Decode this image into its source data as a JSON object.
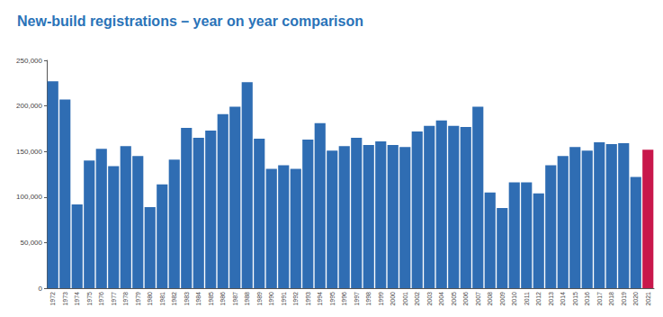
{
  "chart_data": {
    "type": "bar",
    "title": "New-build registrations – year on year comparison",
    "categories": [
      "1972",
      "1973",
      "1974",
      "1975",
      "1976",
      "1977",
      "1978",
      "1979",
      "1980",
      "1981",
      "1982",
      "1983",
      "1984",
      "1985",
      "1986",
      "1987",
      "1988",
      "1989",
      "1990",
      "1991",
      "1992",
      "1993",
      "1994",
      "1995",
      "1996",
      "1997",
      "1998",
      "1999",
      "2000",
      "2001",
      "2002",
      "2003",
      "2004",
      "2005",
      "2006",
      "2007",
      "2008",
      "2009",
      "2010",
      "2011",
      "2012",
      "2013",
      "2014",
      "2015",
      "2016",
      "2017",
      "2018",
      "2019",
      "2020",
      "2021"
    ],
    "values": [
      227000,
      207000,
      92000,
      140000,
      153000,
      134000,
      156000,
      145000,
      89000,
      114000,
      141000,
      176000,
      165000,
      173000,
      191000,
      199000,
      226000,
      164000,
      131000,
      135000,
      131000,
      163000,
      181000,
      151000,
      156000,
      165000,
      157000,
      161000,
      157000,
      155000,
      172000,
      178000,
      184000,
      178000,
      177000,
      199000,
      105000,
      88000,
      116000,
      116000,
      104000,
      135000,
      145000,
      155000,
      151000,
      160000,
      158000,
      159000,
      122000,
      152000
    ],
    "colors": [
      "#2f6db3",
      "#2f6db3",
      "#2f6db3",
      "#2f6db3",
      "#2f6db3",
      "#2f6db3",
      "#2f6db3",
      "#2f6db3",
      "#2f6db3",
      "#2f6db3",
      "#2f6db3",
      "#2f6db3",
      "#2f6db3",
      "#2f6db3",
      "#2f6db3",
      "#2f6db3",
      "#2f6db3",
      "#2f6db3",
      "#2f6db3",
      "#2f6db3",
      "#2f6db3",
      "#2f6db3",
      "#2f6db3",
      "#2f6db3",
      "#2f6db3",
      "#2f6db3",
      "#2f6db3",
      "#2f6db3",
      "#2f6db3",
      "#2f6db3",
      "#2f6db3",
      "#2f6db3",
      "#2f6db3",
      "#2f6db3",
      "#2f6db3",
      "#2f6db3",
      "#2f6db3",
      "#2f6db3",
      "#2f6db3",
      "#2f6db3",
      "#2f6db3",
      "#2f6db3",
      "#2f6db3",
      "#2f6db3",
      "#2f6db3",
      "#2f6db3",
      "#2f6db3",
      "#2f6db3",
      "#2f6db3",
      "#c8174b"
    ],
    "ylim": [
      0,
      250000
    ],
    "yticks": [
      0,
      {
        "value": 50000,
        "label": "50,000"
      },
      {
        "value": 100000,
        "label": "100,000"
      },
      {
        "value": 150000,
        "label": "150,000"
      },
      {
        "value": 200000,
        "label": "200,000"
      },
      {
        "value": 250000,
        "label": "250,000"
      }
    ],
    "grid": false
  }
}
